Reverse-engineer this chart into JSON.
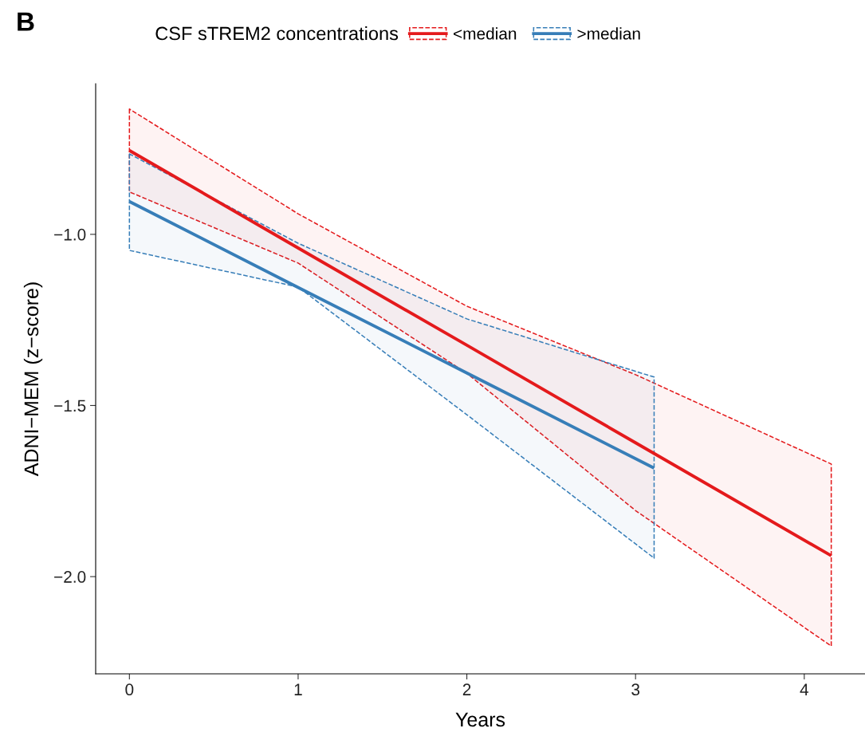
{
  "chart_data": {
    "type": "line",
    "xlabel": "Years",
    "ylabel": "ADNI−MEM (z−score)",
    "legend_title": "CSF sTREM2 concentrations",
    "legend": "top",
    "annotations": [
      "B"
    ],
    "xlim": [
      -0.2,
      4.36
    ],
    "ylim": [
      -2.284,
      -0.56
    ],
    "xticks": [
      0,
      1,
      2,
      3,
      4
    ],
    "yticks": [
      {
        "value": -1.0,
        "label": "−1.0"
      },
      {
        "value": -1.5,
        "label": "−1.5"
      },
      {
        "value": -2.0,
        "label": "−2.0"
      }
    ],
    "grid": false,
    "line_style": "solid",
    "marker": "none",
    "series": [
      {
        "name": "<median",
        "color": "#e41a1c",
        "x": [
          0,
          1,
          2,
          3,
          4.16
        ],
        "values": [
          -0.755,
          -1.04,
          -1.324,
          -1.609,
          -1.939
        ],
        "lower": [
          -0.876,
          -1.084,
          -1.406,
          -1.807,
          -2.203
        ],
        "upper": [
          -0.634,
          -0.94,
          -1.21,
          -1.41,
          -1.671
        ]
      },
      {
        "name": ">median",
        "color": "#377eb8",
        "x": [
          0,
          1,
          2,
          3.11
        ],
        "values": [
          -0.904,
          -1.155,
          -1.405,
          -1.683
        ],
        "lower": [
          -1.047,
          -1.154,
          -1.527,
          -1.946
        ],
        "upper": [
          -0.765,
          -1.026,
          -1.247,
          -1.417
        ]
      }
    ]
  }
}
